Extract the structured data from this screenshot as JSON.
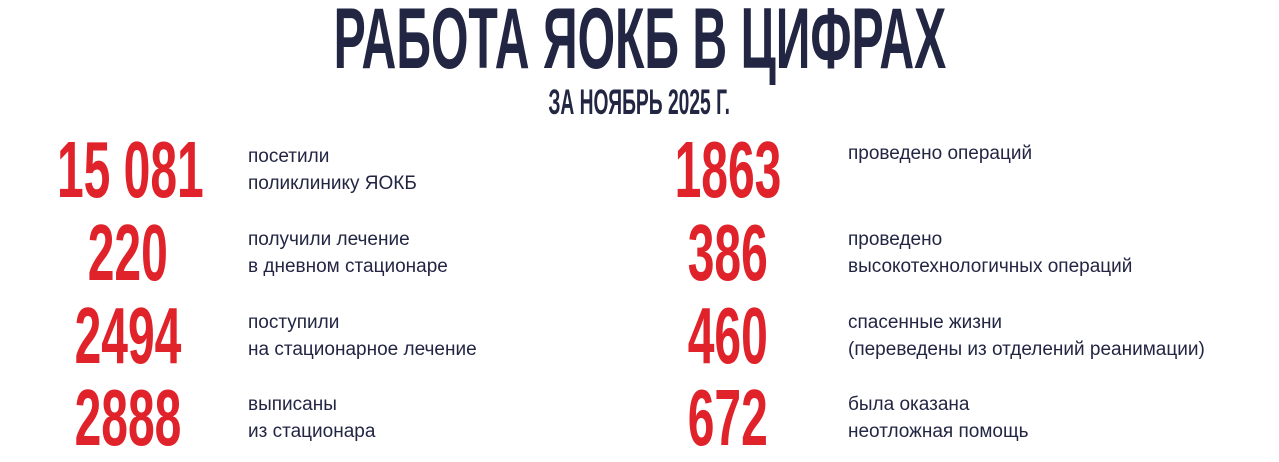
{
  "header": {
    "title": "РАБОТА ЯОКБ В ЦИФРАХ",
    "subtitle": "ЗА НОЯБРЬ 2025 Г."
  },
  "colors": {
    "title": "#222643",
    "number": "#e0222a",
    "text": "#222643"
  },
  "left": [
    {
      "value": "15 081",
      "line1": "посетили",
      "line2": "поликлинику ЯОКБ"
    },
    {
      "value": "220",
      "line1": "получили лечение",
      "line2": "в дневном стационаре"
    },
    {
      "value": "2494",
      "line1": "поступили",
      "line2": "на стационарное лечение"
    },
    {
      "value": "2888",
      "line1": "выписаны",
      "line2": "из стационара"
    }
  ],
  "right": [
    {
      "value": "1863",
      "line1": "проведено операций",
      "line2": ""
    },
    {
      "value": "386",
      "line1": "проведено",
      "line2": "высокотехнологичных операций"
    },
    {
      "value": "460",
      "line1": "спасенные жизни",
      "line2": "(переведены из отделений реанимации)"
    },
    {
      "value": "672",
      "line1": "была оказана",
      "line2": "неотложная помощь"
    }
  ]
}
